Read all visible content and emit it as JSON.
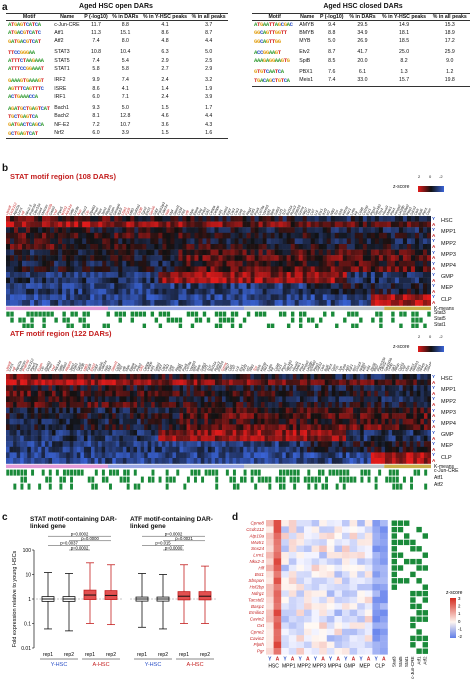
{
  "panel_a": {
    "letter": "a",
    "open": {
      "title": "Aged HSC open DARs",
      "headers": [
        "Motif",
        "Name",
        "P (-log10)",
        "% in DARs",
        "% in Y-HSC peaks",
        "% in all peaks"
      ],
      "groups": [
        [
          {
            "logo": "ATGAGTCATCA",
            "name": "c-Jun-CRE",
            "p": "11.7",
            "dars": "8.8",
            "yhsc": "4.1",
            "all": "3.7"
          },
          {
            "logo": "ATGACGTCATC",
            "name": "Atf1",
            "p": "11.3",
            "dars": "15.1",
            "yhsc": "8.6",
            "all": "8.7"
          },
          {
            "logo": "GATGACGTCAT",
            "name": "Atf2",
            "p": "7.4",
            "dars": "8.0",
            "yhsc": "4.8",
            "all": "4.4"
          }
        ],
        [
          {
            "logo": "TTCCGGGAA",
            "name": "STAT3",
            "p": "10.8",
            "dars": "10.4",
            "yhsc": "6.3",
            "all": "5.0"
          },
          {
            "logo": "ATTTCTAAGAAA",
            "name": "STAT5",
            "p": "7.4",
            "dars": "5.4",
            "yhsc": "2.9",
            "all": "2.5"
          },
          {
            "logo": "ATTTCCGGAAAT",
            "name": "STAT1",
            "p": "5.8",
            "dars": "5.8",
            "yhsc": "2.7",
            "all": "2.9"
          }
        ],
        [
          {
            "logo": "GAAAGTGAAAGT",
            "name": "IRF2",
            "p": "9.9",
            "dars": "7.4",
            "yhsc": "2.4",
            "all": "3.2"
          },
          {
            "logo": "AGTTTCAGTTTC",
            "name": "ISRE",
            "p": "8.6",
            "dars": "4.1",
            "yhsc": "1.4",
            "all": "1.9"
          },
          {
            "logo": "ACTGAAACCA",
            "name": "IRF1",
            "p": "6.0",
            "dars": "7.1",
            "yhsc": "2.4",
            "all": "3.9"
          }
        ],
        [
          {
            "logo": "AGATGCTGAGTCAT",
            "name": "Bach1",
            "p": "9.3",
            "dars": "5.0",
            "yhsc": "1.5",
            "all": "1.7"
          },
          {
            "logo": "TGCTGAGTCA",
            "name": "Bach2",
            "p": "8.1",
            "dars": "12.8",
            "yhsc": "4.6",
            "all": "4.4"
          },
          {
            "logo": "GATGACTCAGCA",
            "name": "NF-E2",
            "p": "7.2",
            "dars": "10.7",
            "yhsc": "3.6",
            "all": "4.3"
          },
          {
            "logo": "GCTGAGTCAT",
            "name": "Nrf2",
            "p": "6.0",
            "dars": "3.9",
            "yhsc": "1.5",
            "all": "1.6"
          }
        ]
      ]
    },
    "closed": {
      "title": "Aged HSC closed DARs",
      "headers": [
        "Motif",
        "Name",
        "P (-log10)",
        "% in DARs",
        "% in Y-HSC peaks",
        "% in all peaks"
      ],
      "groups": [
        [
          {
            "logo": "ATGAATTAGCGAC",
            "name": "AMYB",
            "p": "9.4",
            "dars": "29.5",
            "yhsc": "14.9",
            "all": "15.3"
          },
          {
            "logo": "GGCAGTTGGTT",
            "name": "BMYB",
            "p": "8.8",
            "dars": "34.9",
            "yhsc": "18.1",
            "all": "18.9"
          },
          {
            "logo": "GGCAGTTGG",
            "name": "MYB",
            "p": "5.0",
            "dars": "26.9",
            "yhsc": "18.5",
            "all": "17.2"
          }
        ],
        [
          {
            "logo": "ACCGGAAGT",
            "name": "Etv2",
            "p": "8.7",
            "dars": "41.7",
            "yhsc": "25.0",
            "all": "25.9"
          },
          {
            "logo": "AAAGAGGAAGTG",
            "name": "SpiB",
            "p": "8.5",
            "dars": "20.0",
            "yhsc": "8.2",
            "all": "9.0"
          }
        ],
        [
          {
            "logo": "GTGTCAATCA",
            "name": "PBX1",
            "p": "7.6",
            "dars": "6.1",
            "yhsc": "1.3",
            "all": "1.2"
          },
          {
            "logo": "TGACAGCTGTCA",
            "name": "Meis1",
            "p": "7.4",
            "dars": "33.0",
            "yhsc": "15.7",
            "all": "19.8"
          }
        ]
      ]
    }
  },
  "panel_b": {
    "letter": "b",
    "stat": {
      "title": "STAT motif region (108 DARs)",
      "zscore_label": "z-score",
      "zscore_ticks": [
        "2",
        "0",
        "-2"
      ],
      "genes": [
        "Cpne8",
        "Ccdc112",
        "Atp10a",
        "Lrrn1",
        "Hlf",
        "Nkx2-3",
        "Prdm16",
        "Clec12a",
        "Sox4",
        "Mecom",
        "Dnmt3b",
        "Gata3",
        "Vwf",
        "Ptpn5",
        "Wnt11",
        "Abcb1a",
        "Selp",
        "Lrrc8c",
        "Ace",
        "Plscr2",
        "Clu",
        "Zfp462",
        "Procr",
        "Rorc",
        "Jam2",
        "Rbpms",
        "Esam",
        "Gimap6",
        "Itgb3",
        "Ltbp1",
        "Fgd5",
        "Mllt3",
        "Sult1a1",
        "Cd38",
        "Tgm2",
        "Ehd3",
        "Gpr56",
        "Sdpr",
        "Pdzk1ip1",
        "Cdkn1c",
        "Ndn",
        "Mpl",
        "Slamf1",
        "Cd34",
        "Flt3",
        "Irf8",
        "Mpo",
        "Elane",
        "Ctsg",
        "Prtn3",
        "Gfi1",
        "Cebpa",
        "Cebpe",
        "Klf1",
        "Gata1",
        "Epor",
        "Car1",
        "Car2",
        "Dntt",
        "Il7r",
        "Rag1",
        "Ebf1",
        "Pax5",
        "Cd79a",
        "Vpreb1",
        "Igll1",
        "Blnk",
        "Satb1",
        "Lef1",
        "Tcf7",
        "Bcl11a",
        "Runx3",
        "Zbtb16",
        "Gzma",
        "Nkg7",
        "Ccl5",
        "Cd7",
        "Lck",
        "Ets1",
        "Ikzf2",
        "Id2",
        "Nfil3",
        "Tox",
        "Il2rb",
        "Klrb1c",
        "Ncr1",
        "Ly6a",
        "Kit",
        "Cd48",
        "Cd150",
        "Esr1",
        "Ptgs2",
        "Gpr183",
        "Thy1",
        "Hoxa9",
        "Meis1",
        "Pbx1",
        "Hmga2",
        "Lin28b",
        "Igf2bp2",
        "Plag1",
        "Socs2",
        "Cish",
        "Bcl6",
        "Pim1",
        "Osm"
      ],
      "red_gene_idx": [
        0,
        1,
        4,
        10,
        12,
        14,
        15,
        18,
        20,
        29,
        30,
        33,
        36,
        40,
        45
      ],
      "rows": [
        "HSC",
        "MPP1",
        "MPP2",
        "MPP3",
        "MPP4",
        "GMP",
        "MEP",
        "CLP"
      ],
      "kmeans_label": "K-means",
      "tracks": [
        "Stat3",
        "Stat5",
        "Stat1"
      ]
    },
    "atf": {
      "title": "ATF motif region (122 DARs)",
      "zscore_label": "z-score",
      "zscore_ticks": [
        "2",
        "0",
        "-2"
      ],
      "genes": [
        "Cpne8",
        "Lrrn1",
        "Hlf",
        "Atp10a",
        "Mecom",
        "Prdm16",
        "Ccdc112",
        "Ptpn5",
        "Sox4",
        "Esam",
        "Clu",
        "Zfp462",
        "Procr",
        "Vwf",
        "Abcb1a",
        "Selp",
        "Gata3",
        "Rbpms",
        "Jam2",
        "Ltbp1",
        "Tgm2",
        "Cd38",
        "Mllt3",
        "Fgd5",
        "Ehd3",
        "Sdpr",
        "Gpr56",
        "Cdkn1c",
        "Ndn",
        "Mpl",
        "Slamf1",
        "Cd34",
        "Flt3",
        "Irf8",
        "Mpo",
        "Elane",
        "Ctsg",
        "Prtn3",
        "Gfi1",
        "Cebpa",
        "Cebpe",
        "Klf1",
        "Gata1",
        "Epor",
        "Car1",
        "Car2",
        "Dntt",
        "Il7r",
        "Rag1",
        "Ebf1",
        "Pax5",
        "Cd79a",
        "Vpreb1",
        "Igll1",
        "Blnk",
        "Satb1",
        "Lef1",
        "Tcf7",
        "Bcl11a",
        "Runx3",
        "Zbtb16",
        "Gzma",
        "Nkg7",
        "Ccl5",
        "Cd7",
        "Lck",
        "Ets1",
        "Ikzf2",
        "Id2",
        "Nfil3",
        "Tox",
        "Il2rb",
        "Klrb1c",
        "Ncr1",
        "Ly6a",
        "Kit",
        "Cd48",
        "Esr1",
        "Ptgs2",
        "Gpr183",
        "Thy1",
        "Hoxa9",
        "Meis1",
        "Pbx1",
        "Hmga2",
        "Lin28b",
        "Igf2bp2",
        "Plag1",
        "Socs2",
        "Cish",
        "Bcl6",
        "Pim1",
        "Osm",
        "Fos",
        "Jun",
        "Junb",
        "Atf3",
        "Egr1",
        "Ier2",
        "Dusp1",
        "Nr4a1",
        "Klf2",
        "Klf4",
        "Zfp36",
        "Btg2",
        "Ppp1r15a",
        "Cited2",
        "Gadd45b",
        "Txnip",
        "Sik1",
        "Rhob",
        "Cyr61",
        "Ctgf",
        "Myc",
        "Hes1",
        "Notch1",
        "Dtx1",
        "Nrarp",
        "Heyl",
        "Sox18"
      ],
      "red_gene_idx": [
        0,
        2,
        5,
        9,
        13,
        17,
        22,
        24,
        30,
        38,
        61,
        70
      ],
      "rows": [
        "HSC",
        "MPP1",
        "MPP2",
        "MPP3",
        "MPP4",
        "GMP",
        "MEP",
        "CLP"
      ],
      "kmeans_label": "K-means",
      "tracks": [
        "c-Jun-CRE",
        "Atf1",
        "Atf2"
      ]
    },
    "row_suffix": [
      "Y",
      "A"
    ]
  },
  "panel_c": {
    "letter": "c",
    "left_title": "STAT motif-containing DAR-linked gene",
    "right_title": "ATF motif-containing DAR-linked gene",
    "ylabel": "Fold expression relative to young HSCs",
    "yticks": [
      "100",
      "10",
      "1",
      "0.1",
      "0.01"
    ],
    "xlabels": [
      "rep1",
      "rep2",
      "rep1",
      "rep2"
    ],
    "group_labels": [
      "Y-HSC",
      "A-HSC"
    ],
    "left_pvalues": [
      "p=0.0002",
      "p=0.0000",
      "p=0.0037",
      "p=0.0002"
    ],
    "right_pvalues": [
      "p=0.0002",
      "p=0.0021",
      "p=0.015",
      "p=0.0000"
    ],
    "chart_data": [
      {
        "type": "box",
        "title": "STAT motif-containing DAR-linked gene",
        "ylabel": "Fold expression relative to young HSCs",
        "yscale": "log",
        "ylim": [
          0.01,
          100
        ],
        "categories": [
          "rep1",
          "rep2",
          "rep1",
          "rep2"
        ],
        "groups": [
          "Y-HSC",
          "Y-HSC",
          "A-HSC",
          "A-HSC"
        ],
        "median": [
          1.0,
          1.0,
          1.45,
          1.4
        ],
        "q1": [
          0.8,
          0.8,
          0.95,
          0.95
        ],
        "q3": [
          1.25,
          1.25,
          2.3,
          2.2
        ],
        "whisker_low": [
          0.06,
          0.05,
          0.1,
          0.09
        ],
        "whisker_high": [
          12,
          11,
          30,
          25
        ]
      },
      {
        "type": "box",
        "title": "ATF motif-containing DAR-linked gene",
        "ylabel": "Fold expression relative to young HSCs",
        "yscale": "log",
        "ylim": [
          0.01,
          100
        ],
        "categories": [
          "rep1",
          "rep2",
          "rep1",
          "rep2"
        ],
        "groups": [
          "Y-HSC",
          "Y-HSC",
          "A-HSC",
          "A-HSC"
        ],
        "median": [
          1.0,
          1.0,
          1.3,
          1.3
        ],
        "q1": [
          0.82,
          0.82,
          0.92,
          0.92
        ],
        "q3": [
          1.2,
          1.2,
          2.0,
          2.0
        ],
        "whisker_low": [
          0.07,
          0.06,
          0.1,
          0.1
        ],
        "whisker_high": [
          11,
          10,
          25,
          22
        ]
      }
    ]
  },
  "panel_d": {
    "letter": "d",
    "genes": [
      "Cpne8",
      "Ccdc112",
      "Atp10a",
      "Wwtr1",
      "Snx24",
      "Lrrn1",
      "Nkx2-3",
      "Hlf",
      "Bst1",
      "Sbspon",
      "Hsf2bp",
      "Ndrg1",
      "Tacstd2",
      "Basp1",
      "Emilin2",
      "Cavin2",
      "Oxt",
      "Cpne2",
      "Cavin2",
      "Plpth",
      "Pgr"
    ],
    "columns": [
      "HSC",
      "MPP1",
      "MPP2",
      "MPP3",
      "MPP4",
      "GMP",
      "MEP",
      "CLP"
    ],
    "row_suffix": [
      "Y",
      "A"
    ],
    "tracks": [
      "Stat3",
      "Stat5",
      "Stat1",
      "c-Jun-CRE",
      "Atf1",
      "Atf2"
    ],
    "zscore_label": "z-score",
    "zscore_ticks": [
      "3",
      "2",
      "1",
      "0",
      "-1",
      "-2"
    ]
  }
}
